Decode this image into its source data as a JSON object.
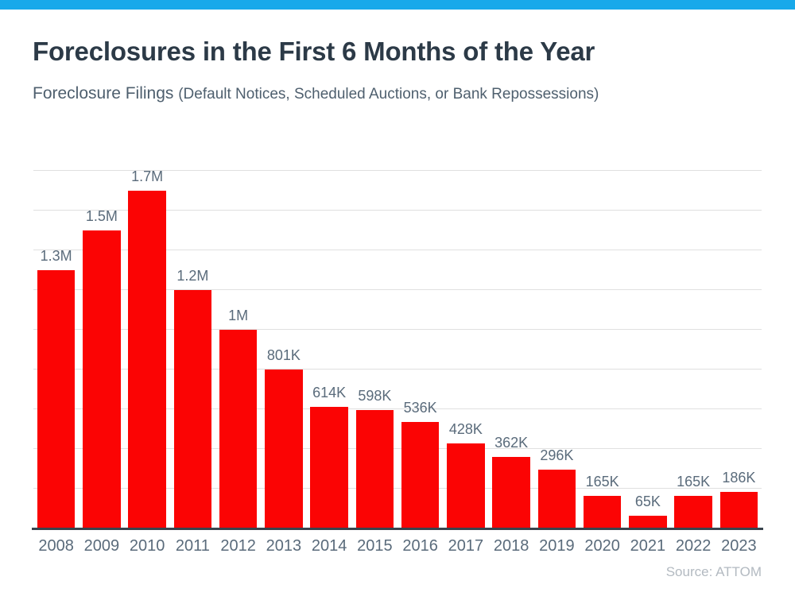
{
  "page": {
    "accent_color": "#18A9EA",
    "background_color": "#FFFFFF"
  },
  "header": {
    "title": "Foreclosures in the First 6 Months of the Year",
    "subtitle_main": "Foreclosure Filings ",
    "subtitle_detail": "(Default Notices, Scheduled Auctions, or Bank Repossessions)"
  },
  "footer": {
    "source": "Source: ATTOM"
  },
  "chart_data": {
    "type": "bar",
    "title": "Foreclosures in the First 6 Months of the Year",
    "subtitle": "Foreclosure Filings (Default Notices, Scheduled Auctions, or Bank Repossessions)",
    "categories": [
      "2008",
      "2009",
      "2010",
      "2011",
      "2012",
      "2013",
      "2014",
      "2015",
      "2016",
      "2017",
      "2018",
      "2019",
      "2020",
      "2021",
      "2022",
      "2023"
    ],
    "values": [
      1300000,
      1500000,
      1700000,
      1200000,
      1000000,
      801000,
      614000,
      598000,
      536000,
      428000,
      362000,
      296000,
      165000,
      65000,
      165000,
      186000
    ],
    "value_labels": [
      "1.3M",
      "1.5M",
      "1.7M",
      "1.2M",
      "1M",
      "801K",
      "614K",
      "598K",
      "536K",
      "428K",
      "362K",
      "296K",
      "165K",
      "65K",
      "165K",
      "186K"
    ],
    "xlabel": "",
    "ylabel": "",
    "ylim": [
      0,
      1800000
    ],
    "gridline_interval": 200000,
    "grid": true,
    "legend": "none",
    "bar_color": "#FB0404",
    "label_color": "#5A6B7B",
    "axis_color": "#39434D",
    "gridline_color": "#E0E0E0",
    "source": "Source: ATTOM"
  }
}
